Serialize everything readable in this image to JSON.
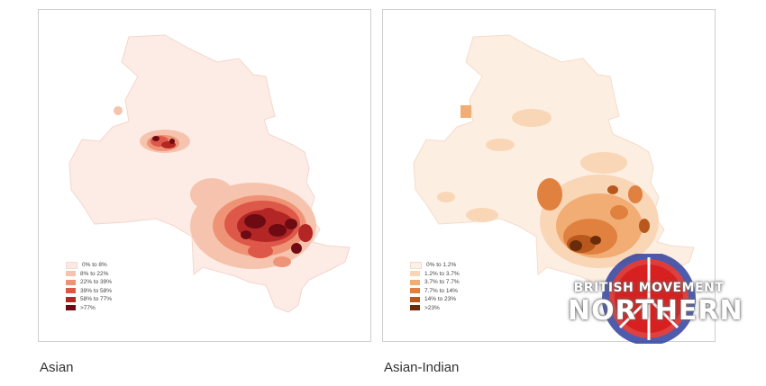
{
  "maps": [
    {
      "caption": "Asian",
      "legend": [
        {
          "label": "0% to 8%",
          "color": "#fbe9e2"
        },
        {
          "label": "8% to 22%",
          "color": "#f6c4ae"
        },
        {
          "label": "22% to 39%",
          "color": "#ef9377"
        },
        {
          "label": "39% to 58%",
          "color": "#dd5848"
        },
        {
          "label": "58% to 77%",
          "color": "#b42525"
        },
        {
          "label": ">77%",
          "color": "#6e0b12"
        }
      ],
      "base_color": "#fdece6"
    },
    {
      "caption": "Asian-Indian",
      "legend": [
        {
          "label": "0% to 1.2%",
          "color": "#fdf0e6"
        },
        {
          "label": "1.2% to 3.7%",
          "color": "#f9d6b6"
        },
        {
          "label": "3.7% to 7.7%",
          "color": "#f1ad74"
        },
        {
          "label": "7.7% to 14%",
          "color": "#e0813f"
        },
        {
          "label": "14% to 23%",
          "color": "#b9581d"
        },
        {
          "label": ">23%",
          "color": "#6a2c08"
        }
      ],
      "base_color": "#fdeee2"
    }
  ],
  "watermark": {
    "line1": "BRITISH MOVEMENT",
    "line2": "NORTHERN"
  }
}
